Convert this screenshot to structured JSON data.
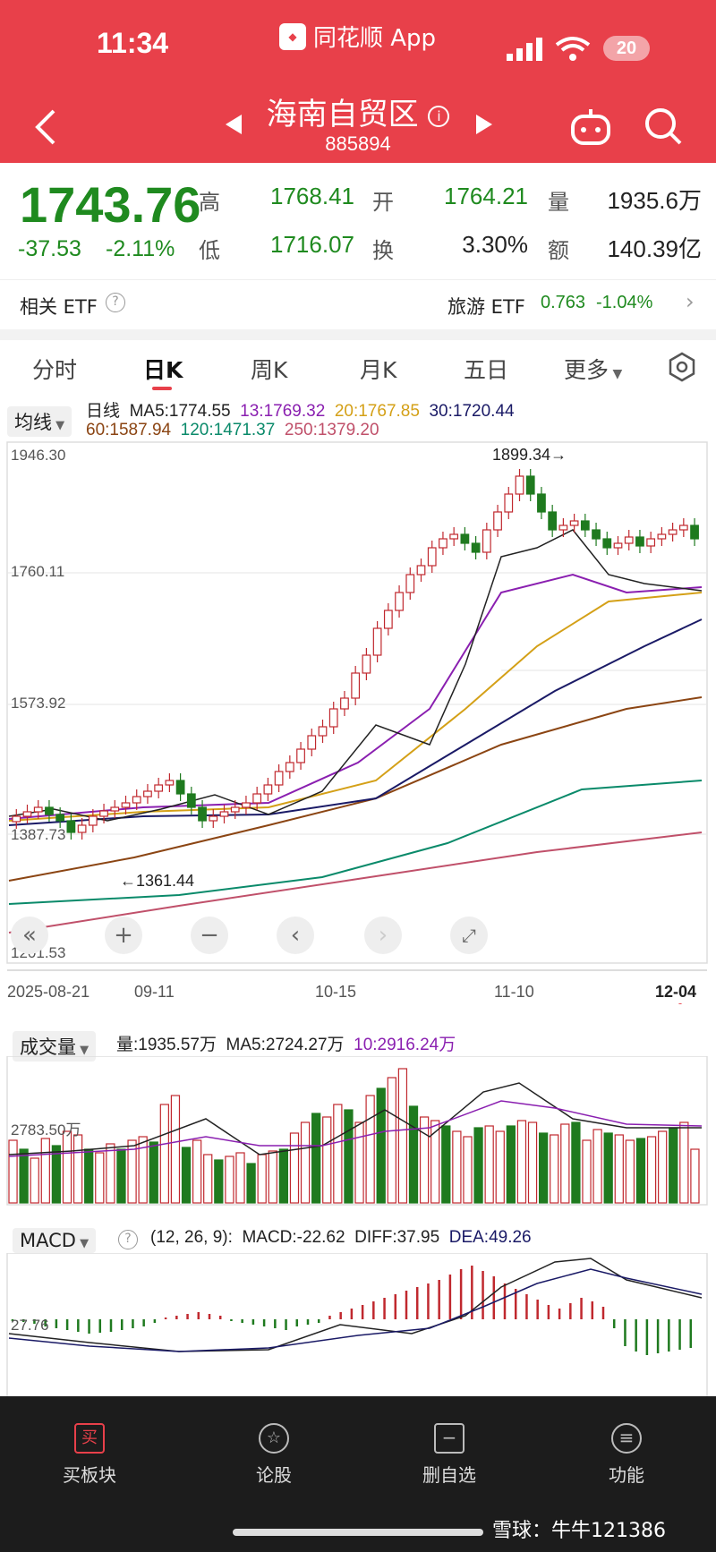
{
  "status": {
    "time": "11:34",
    "app_banner": "同花顺 App",
    "battery": "20"
  },
  "header": {
    "title": "海南自贸区",
    "code": "885894"
  },
  "quote": {
    "price": "1743.76",
    "change": "-37.53",
    "change_pct": "-2.11%",
    "high_label": "高",
    "high": "1768.41",
    "open_label": "开",
    "open": "1764.21",
    "volume_label": "量",
    "volume": "1935.6万",
    "low_label": "低",
    "low": "1716.07",
    "turnover_label": "换",
    "turnover": "3.30%",
    "amount_label": "额",
    "amount": "140.39亿"
  },
  "etf": {
    "label": "相关 ETF",
    "name": "旅游 ETF",
    "price": "0.763",
    "change_pct": "-1.04%"
  },
  "tabs": [
    "分时",
    "日K",
    "周K",
    "月K",
    "五日",
    "更多"
  ],
  "kline": {
    "indicator_select": "均线",
    "period_label": "日线",
    "ma_items": [
      {
        "text": "MA5:1774.55",
        "color": "#222222"
      },
      {
        "text": "13:1769.32",
        "color": "#8a1fb0"
      },
      {
        "text": "20:1767.85",
        "color": "#d4a017"
      },
      {
        "text": "30:1720.44",
        "color": "#1a1a66"
      },
      {
        "text": "60:1587.94",
        "color": "#8b4513"
      },
      {
        "text": "120:1471.37",
        "color": "#0a8a6a"
      },
      {
        "text": "250:1379.20",
        "color": "#c0506a"
      }
    ],
    "y_labels": [
      "1946.30",
      "1760.11",
      "1573.92",
      "1387.73",
      "1201.53"
    ],
    "max_label": "1899.34→",
    "min_label": "←1361.44",
    "x_labels": [
      "2025-08-21",
      "09-11",
      "10-15",
      "11-10",
      "12-04"
    ]
  },
  "volume": {
    "select": "成交量",
    "items": [
      {
        "text": "量:1935.57万",
        "color": "#222222"
      },
      {
        "text": "MA5:2724.27万",
        "color": "#222222"
      },
      {
        "text": "10:2916.24万",
        "color": "#8a1fb0"
      }
    ],
    "y_label": "2783.50万"
  },
  "macd": {
    "select": "MACD",
    "params": "(12, 26, 9):",
    "items": [
      {
        "text": "MACD:-22.62",
        "color": "#222222"
      },
      {
        "text": "DIFF:37.95",
        "color": "#222222"
      },
      {
        "text": "DEA:49.26",
        "color": "#1a1a66"
      }
    ],
    "y_label": "27.76"
  },
  "nav": [
    "买板块",
    "论股",
    "删自选",
    "功能"
  ],
  "watermark": "雪球：牛牛121386",
  "colors": {
    "up": "#c0282e",
    "down": "#1f7a1f",
    "brand_red": "#e8404a"
  }
}
